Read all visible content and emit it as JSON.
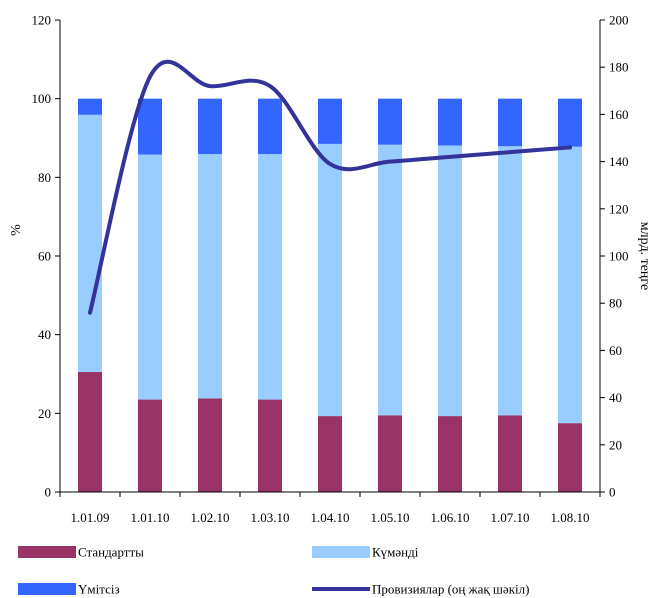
{
  "chart_data": {
    "type": "bar",
    "stacked": true,
    "title": "",
    "categories": [
      "1.01.09",
      "1.01.10",
      "1.02.10",
      "1.03.10",
      "1.04.10",
      "1.05.10",
      "1.06.10",
      "1.07.10",
      "1.08.10"
    ],
    "series": [
      {
        "name": "Стандартты",
        "kind": "bar",
        "color": "#993366",
        "values": [
          30.5,
          23.5,
          23.8,
          23.5,
          19.3,
          19.5,
          19.3,
          19.5,
          17.5
        ]
      },
      {
        "name": "Күмәнді",
        "kind": "bar",
        "color": "#99CCFF",
        "values": [
          65.4,
          62.3,
          62.1,
          62.4,
          69.2,
          68.8,
          68.8,
          68.4,
          70.3
        ]
      },
      {
        "name": "Үмітсіз",
        "kind": "bar",
        "color": "#3366FF",
        "values": [
          4.1,
          14.2,
          14.1,
          14.1,
          11.5,
          11.7,
          11.9,
          12.1,
          12.2
        ]
      },
      {
        "name": "Провизиялар (оң жақ шәкіл)",
        "kind": "line",
        "axis": "right",
        "color": "#333399",
        "values": [
          76,
          176,
          172,
          172,
          139,
          140,
          142,
          144,
          146
        ]
      }
    ],
    "ylabel_left": "%",
    "ylabel_right": "млрд. теңге",
    "ylim_left": [
      0,
      120
    ],
    "ylim_right": [
      0,
      200
    ],
    "yticks_left": [
      "0",
      "20",
      "40",
      "60",
      "80",
      "100",
      "120"
    ],
    "yticks_right": [
      "0",
      "20",
      "40",
      "60",
      "80",
      "100",
      "120",
      "140",
      "160",
      "180",
      "200"
    ],
    "grid": false,
    "legend_position": "bottom"
  }
}
